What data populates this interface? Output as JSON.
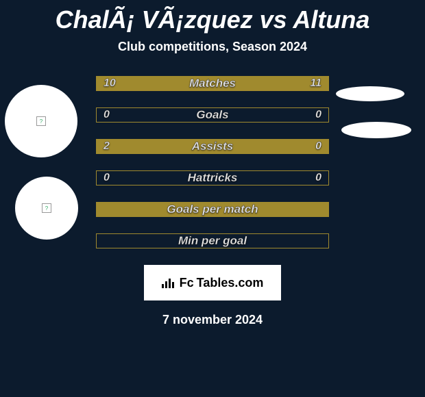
{
  "title": "ChalÃ¡ VÃ¡zquez vs Altuna",
  "subtitle": "Club competitions, Season 2024",
  "colors": {
    "background": "#0c1b2d",
    "accent": "#a08a2e",
    "text": "#ffffff",
    "card_bg": "#ffffff",
    "card_text": "#000000"
  },
  "rows": [
    {
      "label": "Matches",
      "left": "10",
      "right": "11",
      "leftPct": 48,
      "rightPct": 52
    },
    {
      "label": "Goals",
      "left": "0",
      "right": "0",
      "leftPct": 0,
      "rightPct": 0
    },
    {
      "label": "Assists",
      "left": "2",
      "right": "0",
      "leftPct": 80,
      "rightPct": 20
    },
    {
      "label": "Hattricks",
      "left": "0",
      "right": "0",
      "leftPct": 0,
      "rightPct": 0
    },
    {
      "label": "Goals per match",
      "left": "",
      "right": "",
      "full": true
    },
    {
      "label": "Min per goal",
      "left": "",
      "right": "",
      "leftPct": 0,
      "rightPct": 0
    }
  ],
  "logo": {
    "fc": "Fc",
    "rest": "Tables.com"
  },
  "date": "7 november 2024"
}
